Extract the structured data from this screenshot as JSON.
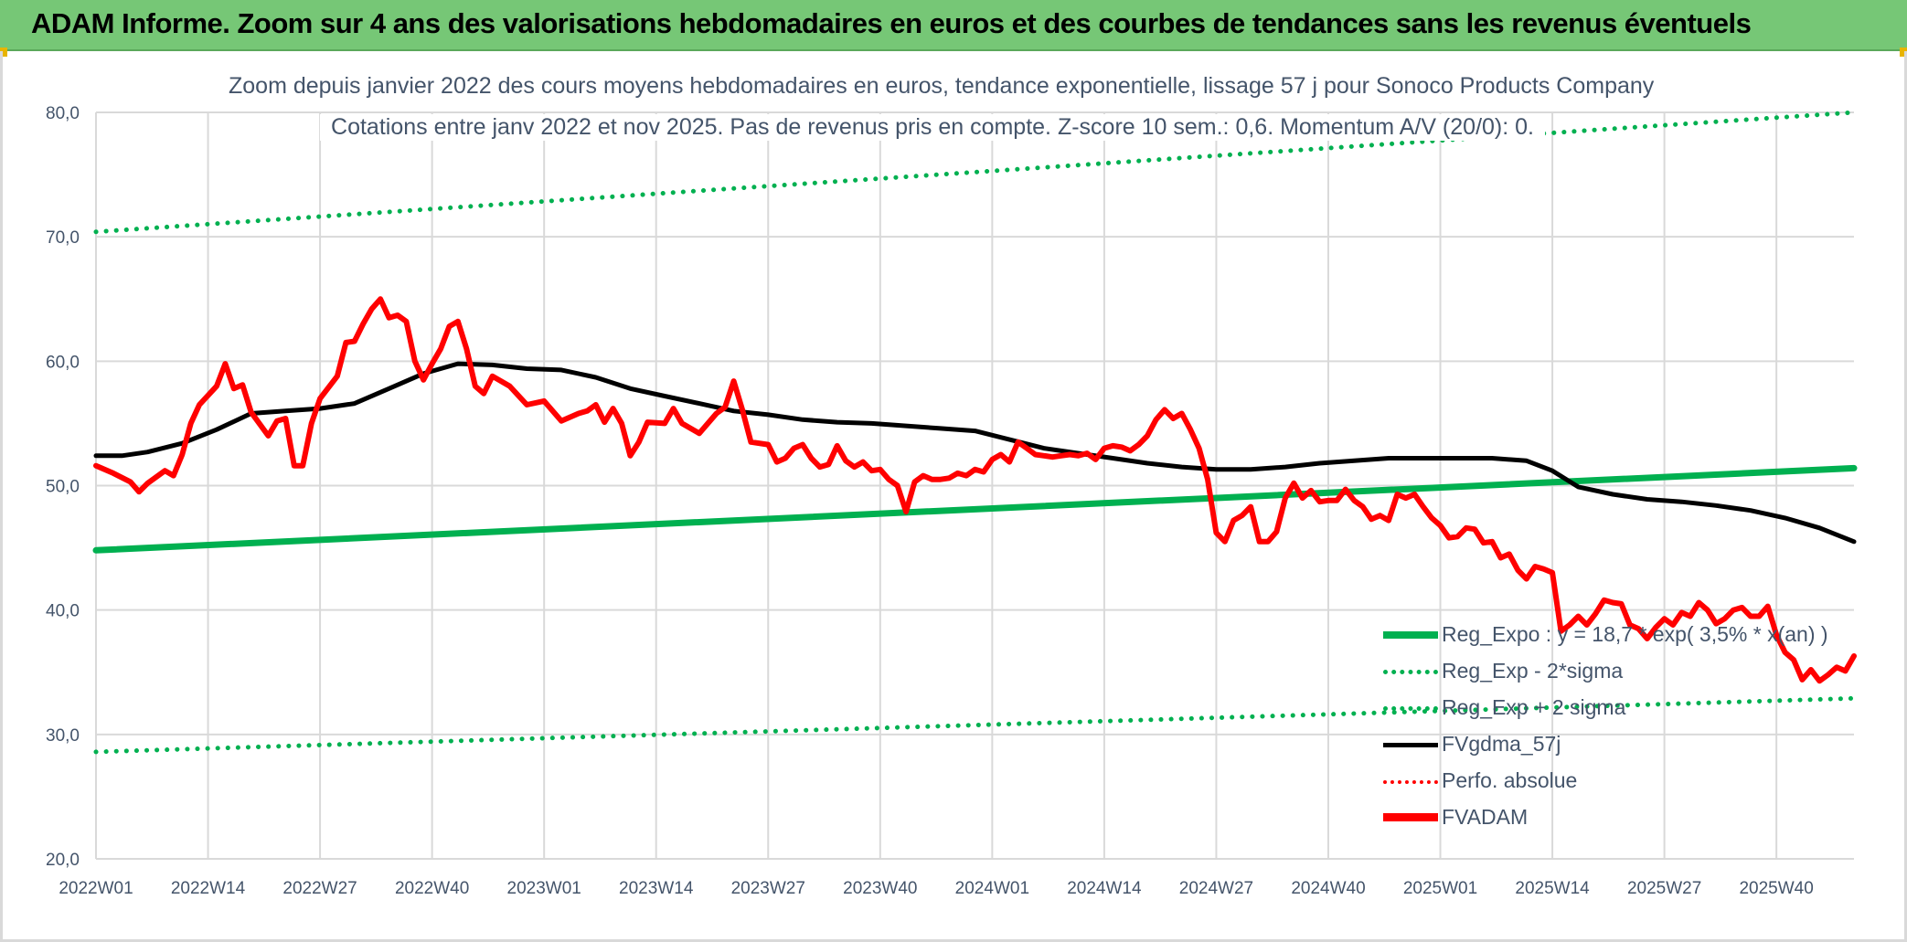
{
  "header": {
    "title": "ADAM Informe. Zoom sur 4 ans des valorisations hebdomadaires en euros et des courbes de tendances sans les revenus éventuels"
  },
  "colors": {
    "banner": "#76c776",
    "trend": "#00b050",
    "smoothed": "#000000",
    "price": "#ff0000",
    "grid": "#d9d9d9",
    "text": "#44546a"
  },
  "chart_data": {
    "type": "line",
    "title": "Zoom depuis janvier 2022 des cours moyens hebdomadaires en euros, tendance exponentielle, lissage 57 j pour Sonoco Products Company",
    "subtitle": "Cotations entre janv 2022 et nov 2025. Pas de revenus pris en compte. Z-score 10 sem.: 0,6. Momentum A/V (20/0): 0.",
    "ylim": [
      20,
      80
    ],
    "yticks": [
      "20,0",
      "30,0",
      "40,0",
      "50,0",
      "60,0",
      "70,0",
      "80,0"
    ],
    "xticks": [
      "2022W01",
      "2022W14",
      "2022W27",
      "2022W40",
      "2023W01",
      "2023W14",
      "2023W27",
      "2023W40",
      "2024W01",
      "2024W14",
      "2024W27",
      "2024W40",
      "2025W01",
      "2025W14",
      "2025W27",
      "2025W40"
    ],
    "weeks_per_tick": 13,
    "n_points": 205,
    "grid": true,
    "legend_position": "bottom-right",
    "series": [
      {
        "name": "Reg_Expo : y = 18,7 * exp( 3,5% * x(an) )",
        "style": "solid-green",
        "knots": [
          [
            0,
            44.8
          ],
          [
            204,
            51.4
          ]
        ]
      },
      {
        "name": "Reg_Exp - 2*sigma",
        "style": "dot-green",
        "knots": [
          [
            0,
            70.4
          ],
          [
            204,
            80.0
          ]
        ]
      },
      {
        "name": "Reg_Exp + 2 sigma",
        "style": "dot-green",
        "knots": [
          [
            0,
            28.6
          ],
          [
            204,
            32.9
          ]
        ]
      },
      {
        "name": "FVgdma_57j",
        "style": "solid-black",
        "knots": [
          [
            0,
            52.4
          ],
          [
            3,
            52.4
          ],
          [
            6,
            52.7
          ],
          [
            10,
            53.4
          ],
          [
            14,
            54.5
          ],
          [
            18,
            55.8
          ],
          [
            22,
            56.0
          ],
          [
            26,
            56.2
          ],
          [
            30,
            56.6
          ],
          [
            34,
            57.8
          ],
          [
            38,
            59.0
          ],
          [
            42,
            59.8
          ],
          [
            46,
            59.7
          ],
          [
            50,
            59.4
          ],
          [
            54,
            59.3
          ],
          [
            58,
            58.7
          ],
          [
            62,
            57.8
          ],
          [
            66,
            57.2
          ],
          [
            70,
            56.6
          ],
          [
            74,
            56.0
          ],
          [
            78,
            55.7
          ],
          [
            82,
            55.3
          ],
          [
            86,
            55.1
          ],
          [
            90,
            55.0
          ],
          [
            94,
            54.8
          ],
          [
            98,
            54.6
          ],
          [
            102,
            54.4
          ],
          [
            106,
            53.7
          ],
          [
            110,
            53.0
          ],
          [
            114,
            52.6
          ],
          [
            118,
            52.2
          ],
          [
            122,
            51.8
          ],
          [
            126,
            51.5
          ],
          [
            130,
            51.3
          ],
          [
            134,
            51.3
          ],
          [
            138,
            51.5
          ],
          [
            142,
            51.8
          ],
          [
            146,
            52.0
          ],
          [
            150,
            52.2
          ],
          [
            154,
            52.2
          ],
          [
            158,
            52.2
          ],
          [
            162,
            52.2
          ],
          [
            166,
            52.0
          ],
          [
            169,
            51.2
          ],
          [
            172,
            49.9
          ],
          [
            176,
            49.3
          ],
          [
            180,
            48.9
          ],
          [
            184,
            48.7
          ],
          [
            188,
            48.4
          ],
          [
            192,
            48.0
          ],
          [
            196,
            47.4
          ],
          [
            200,
            46.6
          ],
          [
            204,
            45.5
          ]
        ]
      },
      {
        "name": "Perfo. absolue",
        "style": "dot-red",
        "knots": []
      },
      {
        "name": "FVADAM",
        "style": "solid-red",
        "knots": [
          [
            0,
            51.6
          ],
          [
            2,
            51.0
          ],
          [
            4,
            50.3
          ],
          [
            5,
            49.5
          ],
          [
            6,
            50.2
          ],
          [
            8,
            51.2
          ],
          [
            9,
            50.8
          ],
          [
            10,
            52.5
          ],
          [
            11,
            55.0
          ],
          [
            12,
            56.5
          ],
          [
            14,
            58.0
          ],
          [
            15,
            59.8
          ],
          [
            16,
            57.8
          ],
          [
            17,
            58.1
          ],
          [
            18,
            55.9
          ],
          [
            20,
            54.0
          ],
          [
            21,
            55.2
          ],
          [
            22,
            55.4
          ],
          [
            23,
            51.6
          ],
          [
            24,
            51.6
          ],
          [
            25,
            55.0
          ],
          [
            26,
            57.0
          ],
          [
            28,
            58.8
          ],
          [
            29,
            61.5
          ],
          [
            30,
            61.6
          ],
          [
            31,
            63.0
          ],
          [
            32,
            64.2
          ],
          [
            33,
            65.0
          ],
          [
            34,
            63.5
          ],
          [
            35,
            63.7
          ],
          [
            36,
            63.2
          ],
          [
            37,
            60.0
          ],
          [
            38,
            58.5
          ],
          [
            39,
            59.8
          ],
          [
            40,
            61.0
          ],
          [
            41,
            62.8
          ],
          [
            42,
            63.2
          ],
          [
            43,
            61.0
          ],
          [
            44,
            58.0
          ],
          [
            45,
            57.4
          ],
          [
            46,
            58.8
          ],
          [
            48,
            58.0
          ],
          [
            50,
            56.5
          ],
          [
            52,
            56.8
          ],
          [
            54,
            55.2
          ],
          [
            56,
            55.8
          ],
          [
            57,
            56.0
          ],
          [
            58,
            56.5
          ],
          [
            59,
            55.1
          ],
          [
            60,
            56.2
          ],
          [
            61,
            55.0
          ],
          [
            62,
            52.4
          ],
          [
            63,
            53.5
          ],
          [
            64,
            55.1
          ],
          [
            66,
            55.0
          ],
          [
            67,
            56.2
          ],
          [
            68,
            55.0
          ],
          [
            70,
            54.2
          ],
          [
            72,
            55.8
          ],
          [
            73,
            56.3
          ],
          [
            74,
            58.4
          ],
          [
            75,
            56.1
          ],
          [
            76,
            53.5
          ],
          [
            78,
            53.3
          ],
          [
            79,
            51.9
          ],
          [
            80,
            52.2
          ],
          [
            81,
            53.0
          ],
          [
            82,
            53.3
          ],
          [
            83,
            52.2
          ],
          [
            84,
            51.5
          ],
          [
            85,
            51.7
          ],
          [
            86,
            53.2
          ],
          [
            87,
            52.0
          ],
          [
            88,
            51.5
          ],
          [
            89,
            51.9
          ],
          [
            90,
            51.2
          ],
          [
            91,
            51.3
          ],
          [
            92,
            50.5
          ],
          [
            93,
            50.0
          ],
          [
            94,
            47.9
          ],
          [
            95,
            50.3
          ],
          [
            96,
            50.8
          ],
          [
            97,
            50.5
          ],
          [
            98,
            50.5
          ],
          [
            99,
            50.6
          ],
          [
            100,
            51.0
          ],
          [
            101,
            50.8
          ],
          [
            102,
            51.3
          ],
          [
            103,
            51.1
          ],
          [
            104,
            52.1
          ],
          [
            105,
            52.5
          ],
          [
            106,
            51.9
          ],
          [
            107,
            53.5
          ],
          [
            108,
            53.0
          ],
          [
            109,
            52.5
          ],
          [
            110,
            52.4
          ],
          [
            111,
            52.3
          ],
          [
            112,
            52.4
          ],
          [
            113,
            52.5
          ],
          [
            114,
            52.4
          ],
          [
            115,
            52.6
          ],
          [
            116,
            52.1
          ],
          [
            117,
            53.0
          ],
          [
            118,
            53.2
          ],
          [
            119,
            53.1
          ],
          [
            120,
            52.8
          ],
          [
            121,
            53.3
          ],
          [
            122,
            54.0
          ],
          [
            123,
            55.3
          ],
          [
            124,
            56.1
          ],
          [
            125,
            55.4
          ],
          [
            126,
            55.8
          ],
          [
            127,
            54.5
          ],
          [
            128,
            53.0
          ],
          [
            129,
            50.5
          ],
          [
            130,
            46.2
          ],
          [
            131,
            45.5
          ],
          [
            132,
            47.2
          ],
          [
            133,
            47.6
          ],
          [
            134,
            48.3
          ],
          [
            135,
            45.5
          ],
          [
            136,
            45.5
          ],
          [
            137,
            46.3
          ],
          [
            138,
            49.0
          ],
          [
            139,
            50.2
          ],
          [
            140,
            49.0
          ],
          [
            141,
            49.6
          ],
          [
            142,
            48.7
          ],
          [
            143,
            48.8
          ],
          [
            144,
            48.8
          ],
          [
            145,
            49.7
          ],
          [
            146,
            48.8
          ],
          [
            147,
            48.3
          ],
          [
            148,
            47.3
          ],
          [
            149,
            47.6
          ],
          [
            150,
            47.2
          ],
          [
            151,
            49.3
          ],
          [
            152,
            49.0
          ],
          [
            153,
            49.3
          ],
          [
            154,
            48.3
          ],
          [
            155,
            47.4
          ],
          [
            156,
            46.8
          ],
          [
            157,
            45.8
          ],
          [
            158,
            45.9
          ],
          [
            159,
            46.6
          ],
          [
            160,
            46.5
          ],
          [
            161,
            45.4
          ],
          [
            162,
            45.5
          ],
          [
            163,
            44.2
          ],
          [
            164,
            44.5
          ],
          [
            165,
            43.2
          ],
          [
            166,
            42.5
          ],
          [
            167,
            43.5
          ],
          [
            168,
            43.3
          ],
          [
            169,
            43.0
          ],
          [
            170,
            38.3
          ],
          [
            171,
            38.8
          ],
          [
            172,
            39.5
          ],
          [
            173,
            38.8
          ],
          [
            174,
            39.7
          ],
          [
            175,
            40.8
          ],
          [
            176,
            40.6
          ],
          [
            177,
            40.5
          ],
          [
            178,
            38.8
          ],
          [
            179,
            38.5
          ],
          [
            180,
            37.7
          ],
          [
            181,
            38.6
          ],
          [
            182,
            39.3
          ],
          [
            183,
            38.8
          ],
          [
            184,
            39.8
          ],
          [
            185,
            39.5
          ],
          [
            186,
            40.6
          ],
          [
            187,
            40.0
          ],
          [
            188,
            38.9
          ],
          [
            189,
            39.3
          ],
          [
            190,
            40.0
          ],
          [
            191,
            40.2
          ],
          [
            192,
            39.5
          ],
          [
            193,
            39.5
          ],
          [
            194,
            40.3
          ],
          [
            195,
            38.0
          ],
          [
            196,
            36.6
          ],
          [
            197,
            36.0
          ],
          [
            198,
            34.4
          ],
          [
            199,
            35.2
          ],
          [
            200,
            34.3
          ],
          [
            201,
            34.8
          ],
          [
            202,
            35.4
          ],
          [
            203,
            35.1
          ],
          [
            204,
            36.3
          ]
        ]
      }
    ]
  }
}
